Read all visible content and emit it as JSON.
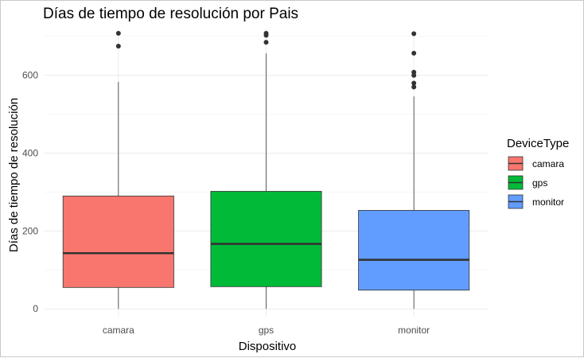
{
  "chart_data": {
    "type": "box",
    "title": "Días de tiempo de resolución por Pais",
    "xlabel": "Dispositivo",
    "ylabel": "Días de tiempo de resolución",
    "ylim": [
      -20,
      720
    ],
    "yticks": [
      0,
      200,
      400,
      600
    ],
    "ytick_labels": [
      "0",
      "200",
      "400",
      "600"
    ],
    "grid": true,
    "categories": [
      "camara",
      "gps",
      "monitor"
    ],
    "series": [
      {
        "name": "camara",
        "color": "#F8766D",
        "min": 0,
        "q1": 55,
        "median": 143,
        "q3": 290,
        "max": 583,
        "outliers": [
          675,
          708
        ]
      },
      {
        "name": "gps",
        "color": "#00BA38",
        "min": 0,
        "q1": 57,
        "median": 167,
        "q3": 302,
        "max": 656,
        "outliers": [
          685,
          703,
          708
        ]
      },
      {
        "name": "monitor",
        "color": "#619CFF",
        "min": 0,
        "q1": 48,
        "median": 126,
        "q3": 253,
        "max": 546,
        "outliers": [
          570,
          580,
          600,
          608,
          657,
          707
        ]
      }
    ],
    "legend": {
      "title": "DeviceType",
      "position": "right",
      "entries": [
        "camara",
        "gps",
        "monitor"
      ]
    }
  }
}
